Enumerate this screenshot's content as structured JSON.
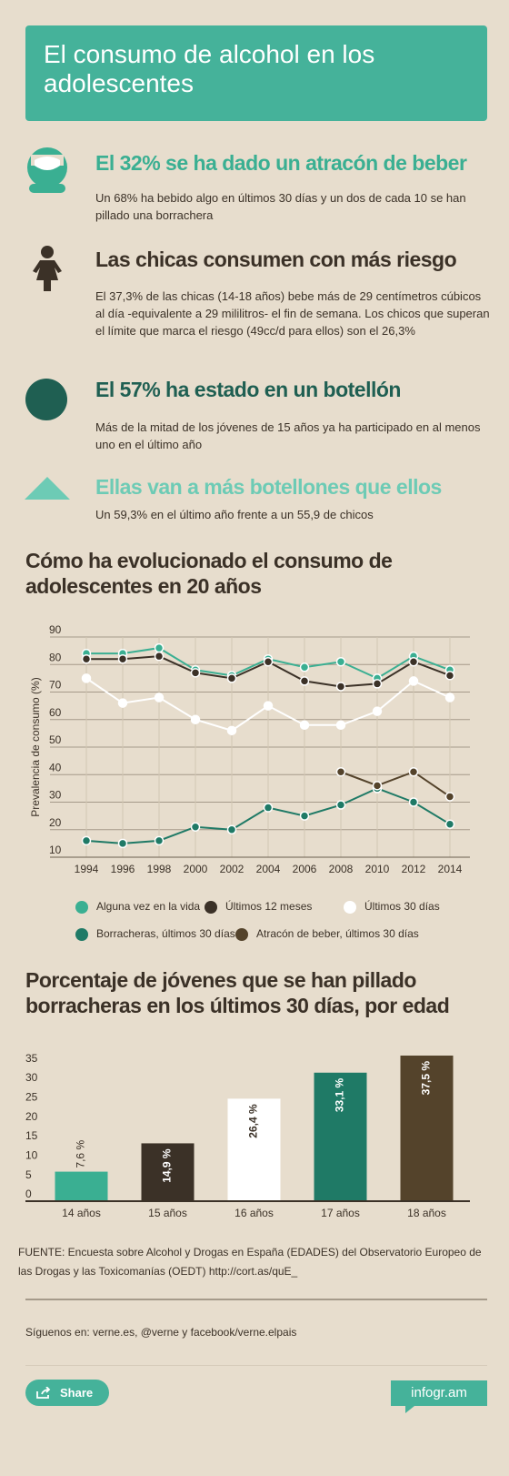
{
  "header": {
    "title": "El consumo de alcohol en los adolescentes"
  },
  "facts": [
    {
      "title": "El 32% se ha dado un atracón de beber",
      "text": "Un 68% ha bebido algo en últimos 30 días y un dos de cada 10 se han pillado una borrachera"
    },
    {
      "title": "Las chicas consumen con más riesgo",
      "text": "El 37,3% de las chicas (14-18 años) bebe más de 29 centímetros cúbicos al día -equivalente a 29 mililitros- el fin de semana. Los chicos que superan el límite que marca el riesgo (49cc/d para ellos) son el 26,3%"
    },
    {
      "title": "El 57% ha estado en un botellón",
      "text": "Más de la mitad de los jóvenes de 15 años ya ha participado en al menos uno en el último año"
    },
    {
      "title": "Ellas van a más botellones que ellos",
      "text": "Un 59,3% en el último año frente a un 55,9 de chicos"
    }
  ],
  "chart_data": [
    {
      "type": "line",
      "title": "Cómo ha evolucionado el consumo de adolescentes en 20 años",
      "ylabel": "Prevalencia de consumo (%)",
      "x": [
        1994,
        1996,
        1998,
        2000,
        2002,
        2004,
        2006,
        2008,
        2010,
        2012,
        2014
      ],
      "xlim": [
        1993,
        2015
      ],
      "xticks": [
        1994,
        1996,
        1998,
        2000,
        2002,
        2004,
        2006,
        2008,
        2010,
        2012,
        2014
      ],
      "ylim": [
        10,
        90
      ],
      "yticks": [
        10,
        20,
        30,
        40,
        50,
        60,
        70,
        80,
        90
      ],
      "grid": true,
      "series": [
        {
          "name": "Alguna vez en la vida",
          "color": "#3aaf92",
          "values": [
            84,
            84,
            86,
            78,
            76,
            82,
            79,
            81,
            75,
            83,
            78
          ]
        },
        {
          "name": "Últimos 12 meses",
          "color": "#3b3127",
          "values": [
            82,
            82,
            83,
            77,
            75,
            81,
            74,
            72,
            73,
            81,
            76
          ]
        },
        {
          "name": "Últimos 30 días",
          "color": "#ffffff",
          "values": [
            75,
            66,
            68,
            60,
            56,
            65,
            58,
            58,
            63,
            74,
            68
          ]
        },
        {
          "name": "Borracheras, últimos 30 días",
          "color": "#1f7a66",
          "values": [
            16,
            15,
            16,
            21,
            20,
            28,
            25,
            29,
            35,
            30,
            22
          ]
        },
        {
          "name": "Atracón de beber, últimos 30 días",
          "color": "#54432b",
          "values": [
            null,
            null,
            null,
            null,
            null,
            null,
            null,
            41,
            36,
            41,
            32
          ]
        }
      ]
    },
    {
      "type": "bar",
      "title": "Porcentaje de jóvenes que se han pillado borracheras en los últimos 30 días, por edad",
      "categories": [
        "14 años",
        "15 años",
        "16 años",
        "17 años",
        "18 años"
      ],
      "values": [
        7.6,
        14.9,
        26.4,
        33.1,
        37.5
      ],
      "value_labels": [
        "7,6 %",
        "14,9 %",
        "26,4 %",
        "33,1 %",
        "37,5 %"
      ],
      "colors": [
        "#3aaf92",
        "#3b3127",
        "#ffffff",
        "#1f7a66",
        "#54432b"
      ],
      "ylim": [
        0,
        37.5
      ],
      "yticks": [
        0,
        5,
        10,
        15,
        20,
        25,
        30,
        35
      ]
    }
  ],
  "footer": {
    "source": "FUENTE: Encuesta sobre Alcohol y Drogas en España (EDADES) del Observatorio Europeo de las Drogas y las Toxicomanías (OEDT) http://cort.as/quE_",
    "follow": "Síguenos en: verne.es, @verne y facebook/verne.elpais",
    "share": "Share",
    "brand": "infogr.am"
  }
}
